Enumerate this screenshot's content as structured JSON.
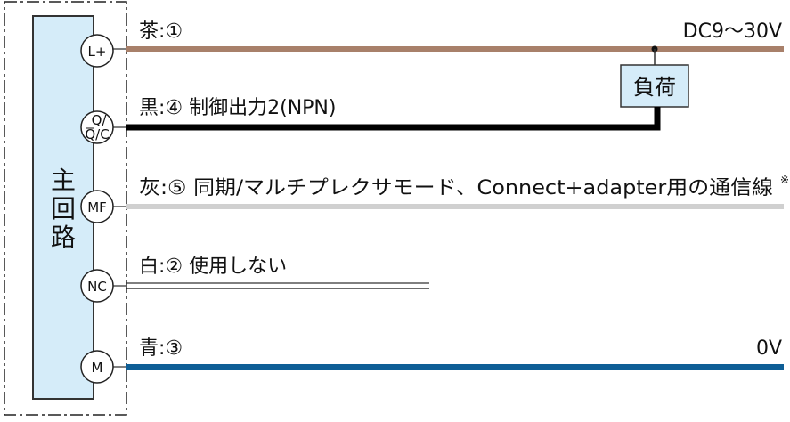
{
  "circuit": {
    "label_chars": [
      "主",
      "回",
      "路"
    ],
    "box_color": "#d5ecf9"
  },
  "pins": [
    {
      "id": "L+",
      "label": "L+"
    },
    {
      "id": "QQC",
      "label_top": "Q/",
      "label_bottom": "Q/C"
    },
    {
      "id": "MF",
      "label": "MF"
    },
    {
      "id": "NC",
      "label": "NC"
    },
    {
      "id": "M",
      "label": "M"
    }
  ],
  "wires": [
    {
      "label": "茶:① ",
      "color": "#a8806a",
      "right_label": "DC9〜30V"
    },
    {
      "label": "黒:④ 制御出力2(NPN)",
      "color": "#000000"
    },
    {
      "label": "灰:⑤ 同期/マルチプレクサモード、Connect+adapter用の通信線",
      "note_mark": "※",
      "color": "#d0d0d0"
    },
    {
      "label": "白:② 使用しない",
      "color": "#ffffff"
    },
    {
      "label": "青:③",
      "color": "#0e5e96",
      "right_label": "0V"
    }
  ],
  "load": {
    "label": "負荷",
    "color": "#d5ecf9"
  }
}
